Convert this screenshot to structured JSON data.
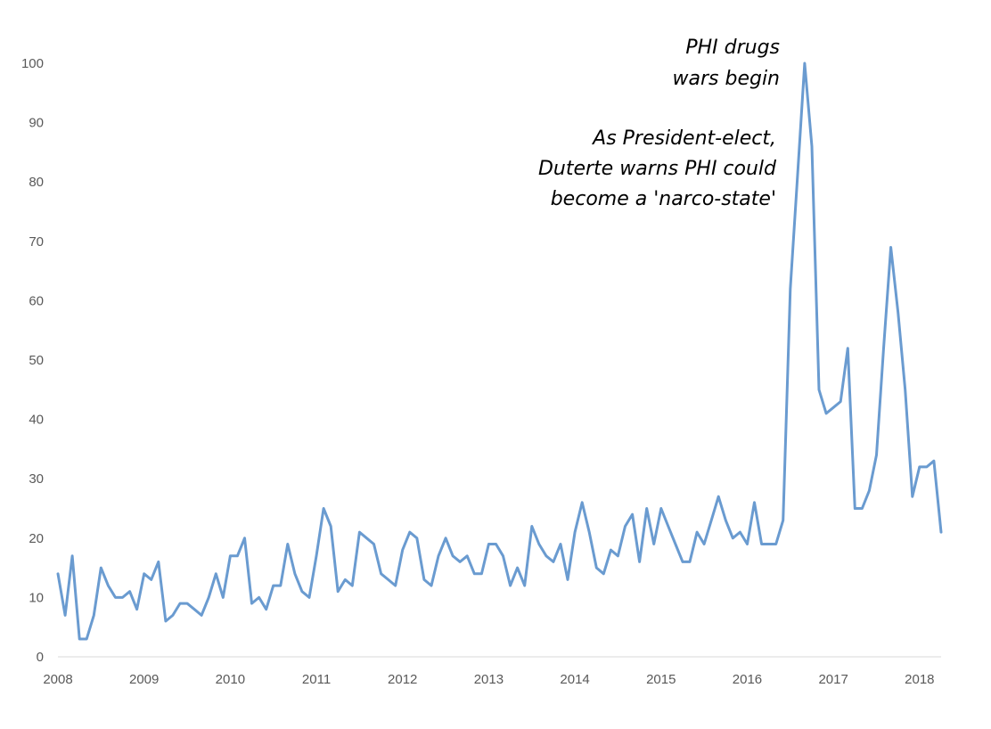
{
  "chart_data": {
    "type": "line",
    "title": "",
    "xlabel": "",
    "ylabel": "",
    "ylim": [
      0,
      100
    ],
    "xlim": [
      2008.0,
      2018.25
    ],
    "y_ticks": [
      "0",
      "10",
      "20",
      "30",
      "40",
      "50",
      "60",
      "70",
      "80",
      "90",
      "100"
    ],
    "x_ticks": [
      "2008",
      "2009",
      "2010",
      "2011",
      "2012",
      "2013",
      "2014",
      "2015",
      "2016",
      "2017",
      "2018"
    ],
    "grid": false,
    "legend": "none",
    "line_color": "#6a9bd0",
    "x_units": "months",
    "x_start": "2008-01",
    "series": [
      {
        "name": "",
        "values": [
          14,
          7,
          17,
          3,
          3,
          7,
          15,
          12,
          10,
          10,
          11,
          8,
          14,
          13,
          16,
          6,
          7,
          9,
          9,
          8,
          7,
          10,
          14,
          10,
          17,
          17,
          20,
          9,
          10,
          8,
          12,
          12,
          19,
          14,
          11,
          10,
          17,
          25,
          22,
          11,
          13,
          12,
          21,
          20,
          19,
          14,
          13,
          12,
          18,
          21,
          20,
          13,
          12,
          17,
          20,
          17,
          16,
          17,
          14,
          14,
          19,
          19,
          17,
          12,
          15,
          12,
          22,
          19,
          17,
          16,
          19,
          13,
          21,
          26,
          21,
          15,
          14,
          18,
          17,
          22,
          24,
          16,
          25,
          19,
          25,
          22,
          19,
          16,
          16,
          21,
          19,
          23,
          27,
          23,
          20,
          21,
          19,
          26,
          19,
          19,
          19,
          23,
          62,
          81,
          100,
          86,
          45,
          41,
          42,
          43,
          52,
          25,
          25,
          28,
          34,
          52,
          69,
          58,
          45,
          27,
          32,
          32,
          33,
          21
        ]
      }
    ],
    "annotations": [
      {
        "lines": [
          "PHI drugs",
          "wars begin"
        ],
        "date": "2016-09"
      },
      {
        "lines": [
          "As President-elect,",
          "Duterte warns PHI could",
          "become a 'narco-state'"
        ],
        "date": "2016-05"
      }
    ]
  }
}
